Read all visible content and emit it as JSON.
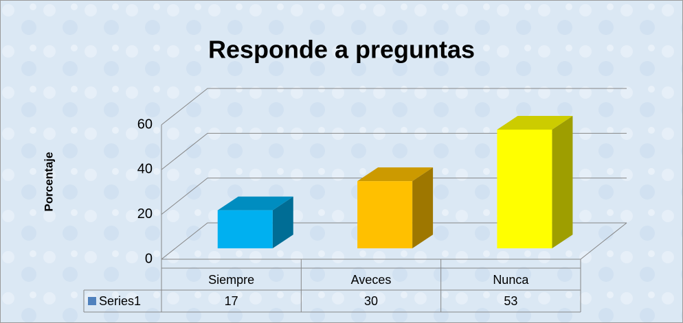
{
  "chart_data": {
    "type": "bar3d",
    "title": "Responde a preguntas",
    "ylabel": "Porcentaje",
    "categories": [
      "Siempre",
      "Aveces",
      "Nunca"
    ],
    "series": [
      {
        "name": "Series1",
        "color": "#4f81bd",
        "bar_colors": [
          "#00b0f0",
          "#ffc000",
          "#ffff00"
        ],
        "values": [
          17,
          30,
          53
        ]
      }
    ],
    "ylim": [
      0,
      60
    ],
    "yticks": [
      0,
      20,
      40,
      60
    ],
    "grid": true,
    "data_table": true
  }
}
